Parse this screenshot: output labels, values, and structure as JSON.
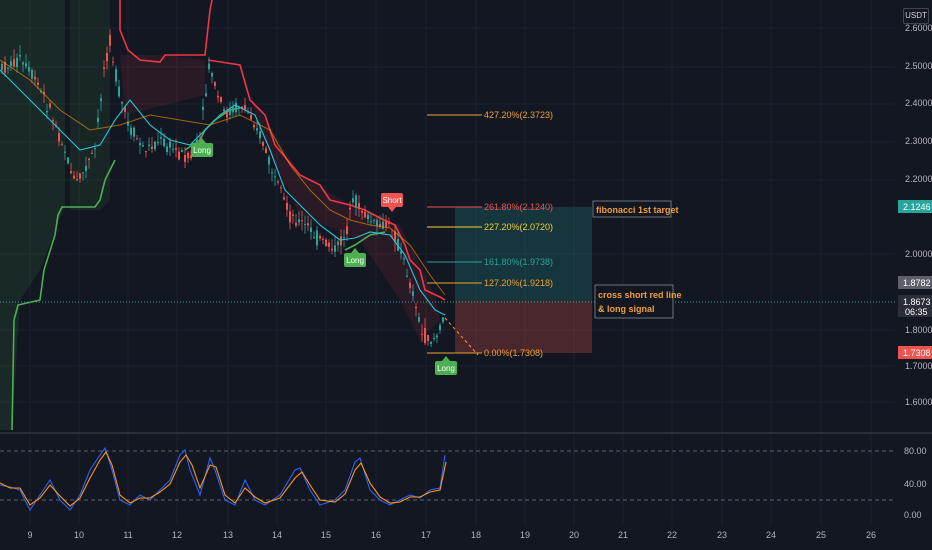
{
  "currency_label": "USDT",
  "price_axis": {
    "labels": [
      "2.6000",
      "2.5000",
      "2.4000",
      "2.3000",
      "2.2000",
      "2.0000",
      "1.8000",
      "1.7000",
      "1.6000"
    ],
    "price_tags": [
      {
        "value": "2.1246",
        "color": "#26a69a"
      },
      {
        "value": "1.8782",
        "color": "#5d606b"
      },
      {
        "value": "1.8673",
        "sub": "06:35",
        "color": "#2a2e39"
      },
      {
        "value": "1.7308",
        "color": "#ef5350"
      }
    ]
  },
  "time_axis": {
    "labels": [
      "9",
      "10",
      "11",
      "12",
      "13",
      "14",
      "15",
      "16",
      "17",
      "18",
      "19",
      "20",
      "21",
      "22",
      "23",
      "24",
      "25",
      "26"
    ]
  },
  "indicator_axis": {
    "labels": [
      "80.00",
      "40.00",
      "0.00"
    ]
  },
  "fib_levels": [
    {
      "label": "427.20%(2.3723)",
      "color": "#f0a030"
    },
    {
      "label": "261.80%(2.1240)",
      "color": "#ef5350"
    },
    {
      "label": "227.20%(2.0720)",
      "color": "#f0d030"
    },
    {
      "label": "161.80%(1.9738)",
      "color": "#26a69a"
    },
    {
      "label": "127.20%(1.9218)",
      "color": "#f0a030"
    },
    {
      "label": "0.00%(1.7308)",
      "color": "#f0a030"
    }
  ],
  "signals": [
    {
      "label": "Long",
      "color": "#4caf50"
    },
    {
      "label": "Short",
      "color": "#ef5350"
    },
    {
      "label": "Long",
      "color": "#4caf50"
    },
    {
      "label": "Long",
      "color": "#4caf50"
    }
  ],
  "annotations": {
    "fib_target": "fibonacci 1st target",
    "cross_signal_line1": "cross short red line",
    "cross_signal_line2": "& long signal"
  },
  "colors": {
    "background": "#131722",
    "up": "#26a69a",
    "down": "#ef5350",
    "supertrend_up": "#4caf50",
    "supertrend_down": "#f23645",
    "annotation": "#f0a030"
  }
}
